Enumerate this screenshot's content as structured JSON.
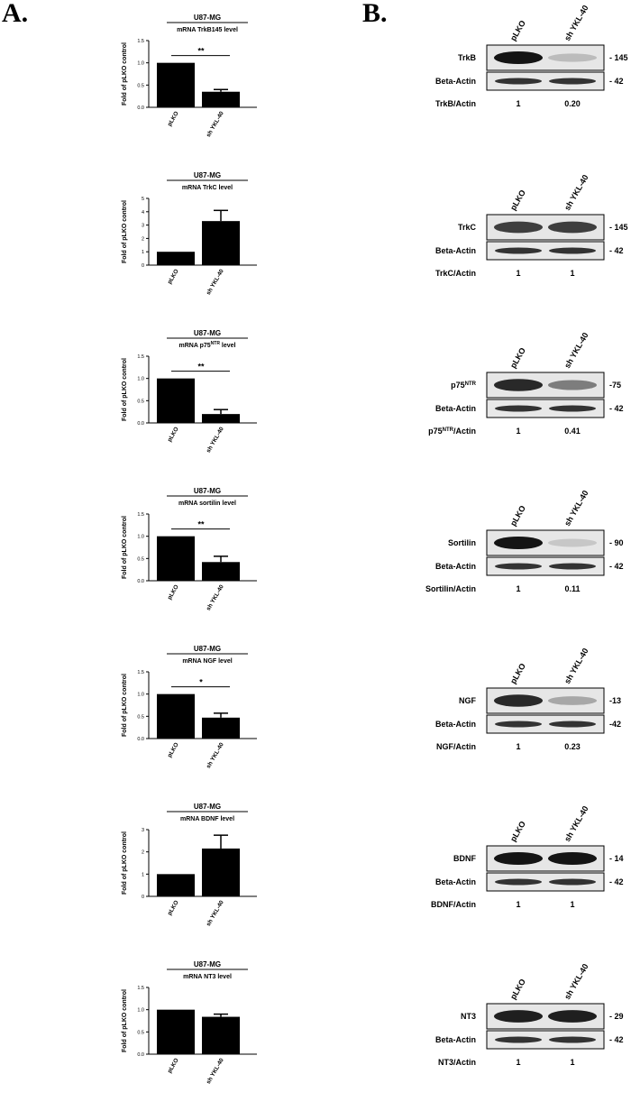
{
  "panel_labels": {
    "a": "A.",
    "b": "B."
  },
  "chart_data": [
    {
      "type": "bar",
      "title": "U87-MG",
      "subtitle": "mRNA TrkB145 level",
      "ylabel": "Fold of pLKO control",
      "categories": [
        "pLKO",
        "sh YKL-40"
      ],
      "values": [
        1.0,
        0.35
      ],
      "errors": [
        0,
        0.05
      ],
      "ylim": [
        0,
        1.5
      ],
      "yticks": [
        "0.0",
        "0.5",
        "1.0",
        "1.5"
      ],
      "significance": "**"
    },
    {
      "type": "bar",
      "title": "U87-MG",
      "subtitle": "mRNA TrkC level",
      "ylabel": "Fold of pLKO control",
      "categories": [
        "pLKO",
        "sh YKL-40"
      ],
      "values": [
        1.0,
        3.3
      ],
      "errors": [
        0,
        0.8
      ],
      "ylim": [
        0,
        5
      ],
      "yticks": [
        "0",
        "1",
        "2",
        "3",
        "4",
        "5"
      ],
      "significance": ""
    },
    {
      "type": "bar",
      "title": "U87-MG",
      "subtitle": "mRNA p75",
      "subtitle_sup": "NTR",
      "subtitle_tail": " level",
      "ylabel": "Fold of pLKO control",
      "categories": [
        "pLKO",
        "sh YKL-40"
      ],
      "values": [
        1.0,
        0.2
      ],
      "errors": [
        0,
        0.1
      ],
      "ylim": [
        0,
        1.5
      ],
      "yticks": [
        "0.0",
        "0.5",
        "1.0",
        "1.5"
      ],
      "significance": "**"
    },
    {
      "type": "bar",
      "title": "U87-MG",
      "subtitle": "mRNA sortilin level",
      "ylabel": "Fold of pLKO control",
      "categories": [
        "pLKO",
        "sh YKL-40"
      ],
      "values": [
        1.0,
        0.42
      ],
      "errors": [
        0,
        0.13
      ],
      "ylim": [
        0,
        1.5
      ],
      "yticks": [
        "0.0",
        "0.5",
        "1.0",
        "1.5"
      ],
      "significance": "**"
    },
    {
      "type": "bar",
      "title": "U87-MG",
      "subtitle": "mRNA NGF level",
      "ylabel": "Fold of pLKO control",
      "categories": [
        "pLKO",
        "sh YKL-40"
      ],
      "values": [
        1.0,
        0.47
      ],
      "errors": [
        0,
        0.1
      ],
      "ylim": [
        0,
        1.5
      ],
      "yticks": [
        "0.0",
        "0.5",
        "1.0",
        "1.5"
      ],
      "significance": "*"
    },
    {
      "type": "bar",
      "title": "U87-MG",
      "subtitle": "mRNA BDNF level",
      "ylabel": "Fold of pLKO control",
      "categories": [
        "pLKO",
        "sh YKL-40"
      ],
      "values": [
        1.0,
        2.15
      ],
      "errors": [
        0,
        0.6
      ],
      "ylim": [
        0,
        3
      ],
      "yticks": [
        "0",
        "1",
        "2",
        "3"
      ],
      "significance": ""
    },
    {
      "type": "bar",
      "title": "U87-MG",
      "subtitle": "mRNA NT3 level",
      "ylabel": "Fold of pLKO control",
      "categories": [
        "pLKO",
        "sh YKL-40"
      ],
      "values": [
        1.0,
        0.84
      ],
      "errors": [
        0,
        0.06
      ],
      "ylim": [
        0,
        1.5
      ],
      "yticks": [
        "0.0",
        "0.5",
        "1.0",
        "1.5"
      ],
      "significance": ""
    }
  ],
  "blots": [
    {
      "lanes": [
        "pLKO",
        "sh YKL-40"
      ],
      "target": "TrkB",
      "target_sup": "",
      "target_mw": "- 145",
      "actin_label": "Beta-Actin",
      "actin_mw": "- 42",
      "ratio_label": "TrkB/Actin",
      "ratio_sup": "",
      "ratio_tail": "",
      "ratios": [
        "1",
        "0.20"
      ],
      "target_intensity": [
        1.0,
        0.2
      ]
    },
    {
      "lanes": [
        "pLKO",
        "sh YKL-40"
      ],
      "target": "TrkC",
      "target_sup": "",
      "target_mw": "- 145",
      "actin_label": "Beta-Actin",
      "actin_mw": "- 42",
      "ratio_label": "TrkC/Actin",
      "ratio_sup": "",
      "ratio_tail": "",
      "ratios": [
        "1",
        "1"
      ],
      "target_intensity": [
        0.8,
        0.8
      ]
    },
    {
      "lanes": [
        "pLKO",
        "sh YKL-40"
      ],
      "target": "p75",
      "target_sup": "NTR",
      "target_mw": "-75",
      "actin_label": "Beta-Actin",
      "actin_mw": "- 42",
      "ratio_label": "p75",
      "ratio_sup": "NTR",
      "ratio_tail": "/Actin",
      "ratios": [
        "1",
        "0.41"
      ],
      "target_intensity": [
        0.9,
        0.5
      ]
    },
    {
      "lanes": [
        "pLKO",
        "sh YKL-40"
      ],
      "target": "Sortilin",
      "target_sup": "",
      "target_mw": "- 90",
      "actin_label": "Beta-Actin",
      "actin_mw": "- 42",
      "ratio_label": "Sortilin/Actin",
      "ratio_sup": "",
      "ratio_tail": "",
      "ratios": [
        "1",
        "0.11"
      ],
      "target_intensity": [
        1.0,
        0.15
      ]
    },
    {
      "lanes": [
        "pLKO",
        "sh YKL-40"
      ],
      "target": "NGF",
      "target_sup": "",
      "target_mw": "-13",
      "actin_label": "Beta-Actin",
      "actin_mw": "-42",
      "ratio_label": "NGF/Actin",
      "ratio_sup": "",
      "ratio_tail": "",
      "ratios": [
        "1",
        "0.23"
      ],
      "target_intensity": [
        0.9,
        0.3
      ]
    },
    {
      "lanes": [
        "pLKO",
        "sh YKL-40"
      ],
      "target": "BDNF",
      "target_sup": "",
      "target_mw": "- 14",
      "actin_label": "Beta-Actin",
      "actin_mw": "- 42",
      "ratio_label": "BDNF/Actin",
      "ratio_sup": "",
      "ratio_tail": "",
      "ratios": [
        "1",
        "1"
      ],
      "target_intensity": [
        1.0,
        1.0
      ]
    },
    {
      "lanes": [
        "pLKO",
        "sh YKL-40"
      ],
      "target": "NT3",
      "target_sup": "",
      "target_mw": "- 29",
      "actin_label": "Beta-Actin",
      "actin_mw": "- 42",
      "ratio_label": "NT3/Actin",
      "ratio_sup": "",
      "ratio_tail": "",
      "ratios": [
        "1",
        "1"
      ],
      "target_intensity": [
        0.95,
        0.95
      ]
    }
  ]
}
